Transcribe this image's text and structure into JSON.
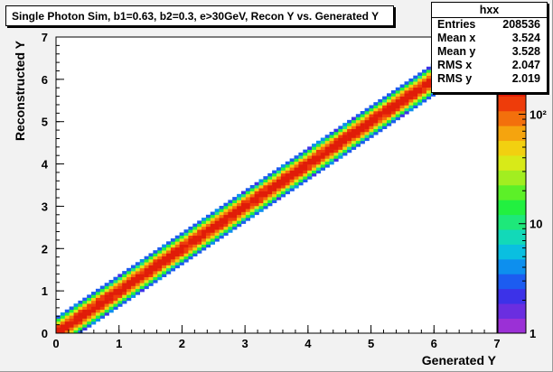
{
  "chart_data": {
    "type": "heatmap",
    "title": "Single Photon Sim, b1=0.63, b2=0.3, e>30GeV, Recon Y vs. Generated Y",
    "xlabel": "Generated Y",
    "ylabel": "Reconstructed Y",
    "xlim": [
      0,
      7
    ],
    "ylim": [
      0,
      7
    ],
    "x_ticks": [
      "0",
      "1",
      "2",
      "3",
      "4",
      "5",
      "6",
      "7"
    ],
    "y_ticks": [
      "0",
      "1",
      "2",
      "3",
      "4",
      "5",
      "6",
      "7"
    ],
    "z_scale": "log",
    "z_range": [
      1,
      200
    ],
    "z_ticks": [
      "1",
      "10",
      "10²"
    ],
    "grid": false,
    "description_of_distribution": {
      "ridge": "y = x",
      "core_half_width": 0.12,
      "outer_half_width": 0.35,
      "x_range": [
        0.0,
        6.6
      ]
    },
    "stats": {
      "name": "hxx",
      "entries": {
        "label": "Entries",
        "value": "208536"
      },
      "mean_x": {
        "label": "Mean x",
        "value": "3.524"
      },
      "mean_y": {
        "label": "Mean y",
        "value": "3.528"
      },
      "rms_x": {
        "label": "RMS x",
        "value": "2.047"
      },
      "rms_y": {
        "label": "RMS y",
        "value": "2.019"
      }
    }
  }
}
